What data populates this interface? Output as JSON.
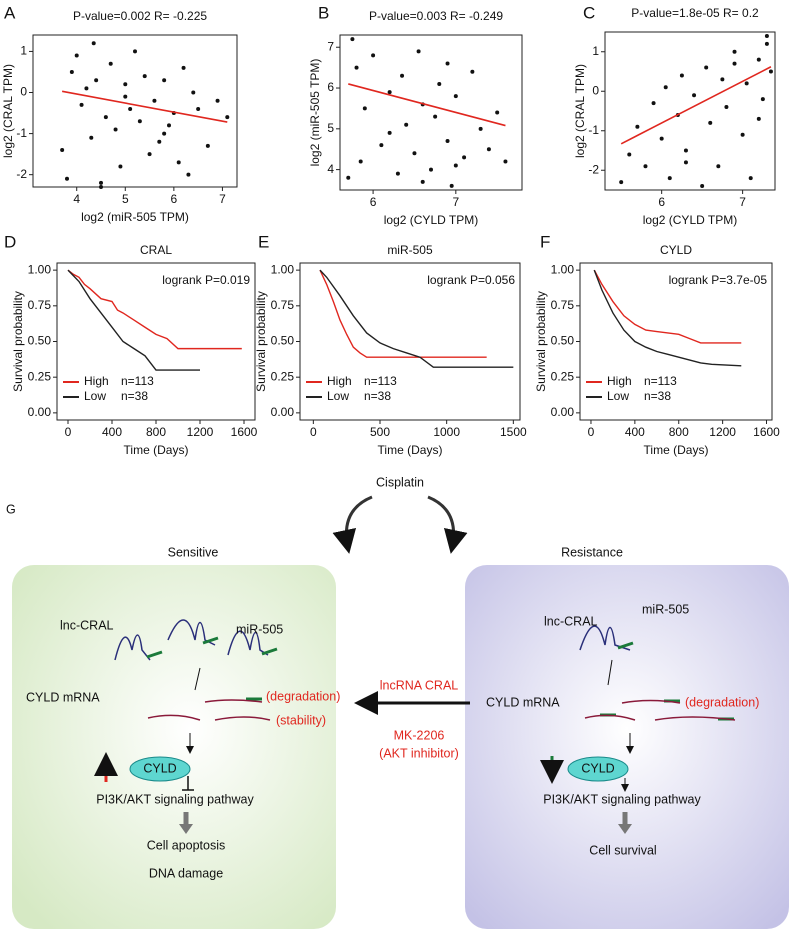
{
  "chart_data": [
    {
      "panel": "A",
      "type": "scatter",
      "annotation": "P-value=0.002   R= -0.225",
      "xlabel": "log2 (miR-505 TPM)",
      "ylabel": "log2 (CRAL TPM)",
      "color": "#111111",
      "xlim": [
        3.1,
        7.3
      ],
      "ylim": [
        -2.3,
        1.4
      ],
      "xticks": [
        4,
        5,
        6,
        7
      ],
      "yticks": [
        -2,
        -1,
        0,
        1
      ],
      "x": [
        3.7,
        3.8,
        3.9,
        4.0,
        4.1,
        4.2,
        4.3,
        4.35,
        4.4,
        4.5,
        4.6,
        4.7,
        4.8,
        4.9,
        5.0,
        5.1,
        5.2,
        5.3,
        5.4,
        5.5,
        5.6,
        5.7,
        5.8,
        5.9,
        6.0,
        6.1,
        6.2,
        6.3,
        6.5,
        6.7,
        6.9,
        7.1,
        4.5,
        5.0,
        5.8,
        6.4
      ],
      "values": [
        -1.4,
        -2.1,
        0.5,
        0.9,
        -0.3,
        0.1,
        -1.1,
        1.2,
        0.3,
        -2.2,
        -0.6,
        0.7,
        -0.9,
        -1.8,
        0.2,
        -0.4,
        1.0,
        -0.7,
        0.4,
        -1.5,
        -0.2,
        -1.2,
        0.3,
        -0.8,
        -0.5,
        -1.7,
        0.6,
        -2.0,
        -0.4,
        -1.3,
        -0.2,
        -0.6,
        -2.3,
        -0.1,
        -1.0,
        0.0
      ],
      "fit": {
        "color": "#e0271f",
        "x": [
          3.7,
          7.1
        ],
        "values": [
          0.03,
          -0.72
        ]
      }
    },
    {
      "panel": "B",
      "type": "scatter",
      "annotation": "P-value=0.003   R= -0.249",
      "xlabel": "log2 (CYLD TPM)",
      "ylabel": "log2 (miR-505 TPM)",
      "color": "#111111",
      "xlim": [
        5.6,
        7.8
      ],
      "ylim": [
        3.5,
        7.3
      ],
      "xticks": [
        6,
        7
      ],
      "yticks": [
        4,
        5,
        6,
        7
      ],
      "x": [
        5.7,
        5.75,
        5.8,
        5.85,
        5.9,
        6.0,
        6.1,
        6.2,
        6.3,
        6.35,
        6.4,
        6.5,
        6.55,
        6.6,
        6.7,
        6.75,
        6.8,
        6.9,
        6.95,
        7.0,
        7.1,
        7.2,
        7.3,
        7.4,
        7.5,
        7.6,
        6.2,
        6.6,
        6.9,
        7.0
      ],
      "values": [
        3.8,
        7.2,
        6.5,
        4.2,
        5.5,
        6.8,
        4.6,
        5.9,
        3.9,
        6.3,
        5.1,
        4.4,
        6.9,
        5.6,
        4.0,
        5.3,
        6.1,
        4.7,
        3.6,
        5.8,
        4.3,
        6.4,
        5.0,
        4.5,
        5.4,
        4.2,
        4.9,
        3.7,
        6.6,
        4.1
      ],
      "fit": {
        "color": "#e0271f",
        "x": [
          5.7,
          7.6
        ],
        "values": [
          6.1,
          5.08
        ]
      }
    },
    {
      "panel": "C",
      "type": "scatter",
      "annotation": "P-value=1.8e-05   R= 0.2",
      "xlabel": "log2 (CYLD TPM)",
      "ylabel": "log2 (CRAL TPM)",
      "color": "#111111",
      "xlim": [
        5.3,
        7.4
      ],
      "ylim": [
        -2.5,
        1.5
      ],
      "xticks": [
        6,
        7
      ],
      "yticks": [
        -2,
        -1,
        0,
        1
      ],
      "x": [
        5.5,
        5.6,
        5.7,
        5.8,
        5.9,
        6.0,
        6.05,
        6.1,
        6.2,
        6.25,
        6.3,
        6.4,
        6.5,
        6.55,
        6.6,
        6.7,
        6.75,
        6.8,
        6.9,
        7.0,
        7.05,
        7.1,
        7.2,
        7.25,
        7.3,
        7.35,
        7.2,
        7.3,
        6.3,
        6.9
      ],
      "values": [
        -2.3,
        -1.6,
        -0.9,
        -1.9,
        -0.3,
        -1.2,
        0.1,
        -2.2,
        -0.6,
        0.4,
        -1.5,
        -0.1,
        -2.4,
        0.6,
        -0.8,
        -1.9,
        0.3,
        -0.4,
        1.0,
        -1.1,
        0.2,
        -2.2,
        0.8,
        -0.2,
        1.2,
        0.5,
        -0.7,
        1.4,
        -1.8,
        0.7
      ],
      "fit": {
        "color": "#e0271f",
        "x": [
          5.5,
          7.35
        ],
        "values": [
          -1.33,
          0.62
        ]
      }
    },
    {
      "panel": "D",
      "type": "line",
      "title": "CRAL",
      "annotation": "logrank P=0.019",
      "xlabel": "Time (Days)",
      "ylabel": "Survival probability",
      "xlim": [
        -100,
        1700
      ],
      "ylim": [
        -0.05,
        1.05
      ],
      "xticks": [
        0,
        400,
        800,
        1200,
        1600
      ],
      "yticks": [
        {
          "value": 0,
          "label": "0.00"
        },
        {
          "value": 0.25,
          "label": "0.25"
        },
        {
          "value": 0.5,
          "label": "0.50"
        },
        {
          "value": 0.75,
          "label": "0.75"
        },
        {
          "value": 1,
          "label": "1.00"
        }
      ],
      "series": [
        {
          "name": "High",
          "n": "n=113",
          "color": "#e0271f",
          "x": [
            0,
            50,
            100,
            150,
            200,
            300,
            400,
            450,
            500,
            600,
            700,
            800,
            900,
            1000,
            1100,
            1580
          ],
          "values": [
            1,
            0.97,
            0.95,
            0.9,
            0.87,
            0.8,
            0.78,
            0.72,
            0.7,
            0.65,
            0.6,
            0.55,
            0.52,
            0.45,
            0.45,
            0.45
          ]
        },
        {
          "name": "Low",
          "n": "n=38",
          "color": "#222222",
          "x": [
            0,
            100,
            200,
            300,
            400,
            500,
            600,
            700,
            800,
            900,
            1000,
            1200
          ],
          "values": [
            1,
            0.92,
            0.8,
            0.7,
            0.6,
            0.5,
            0.45,
            0.4,
            0.3,
            0.3,
            0.3,
            0.3
          ]
        }
      ]
    },
    {
      "panel": "E",
      "type": "line",
      "title": "miR-505",
      "annotation": "logrank P=0.056",
      "xlabel": "Time (Days)",
      "ylabel": "Survival probability",
      "xlim": [
        -100,
        1550
      ],
      "ylim": [
        -0.05,
        1.05
      ],
      "xticks": [
        0,
        500,
        1000,
        1500
      ],
      "yticks": [
        {
          "value": 0,
          "label": "0.00"
        },
        {
          "value": 0.25,
          "label": "0.25"
        },
        {
          "value": 0.5,
          "label": "0.50"
        },
        {
          "value": 0.75,
          "label": "0.75"
        },
        {
          "value": 1,
          "label": "1.00"
        }
      ],
      "series": [
        {
          "name": "High",
          "n": "n=113",
          "color": "#e0271f",
          "x": [
            50,
            100,
            150,
            200,
            250,
            300,
            350,
            400,
            600,
            800,
            1000,
            1300
          ],
          "values": [
            1,
            0.9,
            0.78,
            0.65,
            0.55,
            0.46,
            0.42,
            0.39,
            0.39,
            0.39,
            0.39,
            0.39
          ]
        },
        {
          "name": "Low",
          "n": "n=38",
          "color": "#222222",
          "x": [
            50,
            100,
            200,
            300,
            400,
            500,
            600,
            700,
            800,
            900,
            1000,
            1500
          ],
          "values": [
            1,
            0.95,
            0.82,
            0.68,
            0.56,
            0.49,
            0.45,
            0.42,
            0.39,
            0.32,
            0.32,
            0.32
          ]
        }
      ]
    },
    {
      "panel": "F",
      "type": "line",
      "title": "CYLD",
      "annotation": "logrank P=3.7e-05",
      "xlabel": "Time (Days)",
      "ylabel": "Survival probability",
      "xlim": [
        -100,
        1650
      ],
      "ylim": [
        -0.05,
        1.05
      ],
      "xticks": [
        0,
        400,
        800,
        1200,
        1600
      ],
      "yticks": [
        {
          "value": 0,
          "label": "0.00"
        },
        {
          "value": 0.25,
          "label": "0.25"
        },
        {
          "value": 0.5,
          "label": "0.50"
        },
        {
          "value": 0.75,
          "label": "0.75"
        },
        {
          "value": 1,
          "label": "1.00"
        }
      ],
      "series": [
        {
          "name": "High",
          "n": "n=113",
          "color": "#e0271f",
          "x": [
            30,
            100,
            200,
            300,
            400,
            500,
            600,
            700,
            800,
            900,
            1000,
            1100,
            1370
          ],
          "values": [
            1,
            0.9,
            0.78,
            0.68,
            0.62,
            0.58,
            0.57,
            0.56,
            0.55,
            0.52,
            0.49,
            0.49,
            0.49
          ]
        },
        {
          "name": "Low",
          "n": "n=38",
          "color": "#222222",
          "x": [
            30,
            100,
            200,
            300,
            400,
            500,
            600,
            700,
            800,
            900,
            1000,
            1100,
            1370
          ],
          "values": [
            1,
            0.86,
            0.7,
            0.58,
            0.5,
            0.46,
            0.43,
            0.41,
            0.39,
            0.37,
            0.35,
            0.34,
            0.33
          ]
        }
      ]
    }
  ],
  "diagram": {
    "panel": "G",
    "drug": "Cisplatin",
    "left": {
      "title": "Sensitive",
      "lnc": "lnc-CRAL",
      "mir": "miR-505",
      "mrna": "CYLD mRNA",
      "degradation": "(degradation)",
      "stability": "(stability)",
      "protein": "CYLD",
      "pathway": "PI3K/AKT signaling pathway",
      "out1": "Cell apoptosis",
      "out2": "DNA damage"
    },
    "right": {
      "title": "Resistance",
      "lnc": "lnc-CRAL",
      "mir": "miR-505",
      "mrna": "CYLD mRNA",
      "degradation": "(degradation)",
      "protein": "CYLD",
      "pathway": "PI3K/AKT signaling pathway",
      "out1": "Cell survival"
    },
    "middle": {
      "top": "lncRNA CRAL",
      "drug": "MK-2206",
      "note": "(AKT inhibitor)"
    }
  }
}
